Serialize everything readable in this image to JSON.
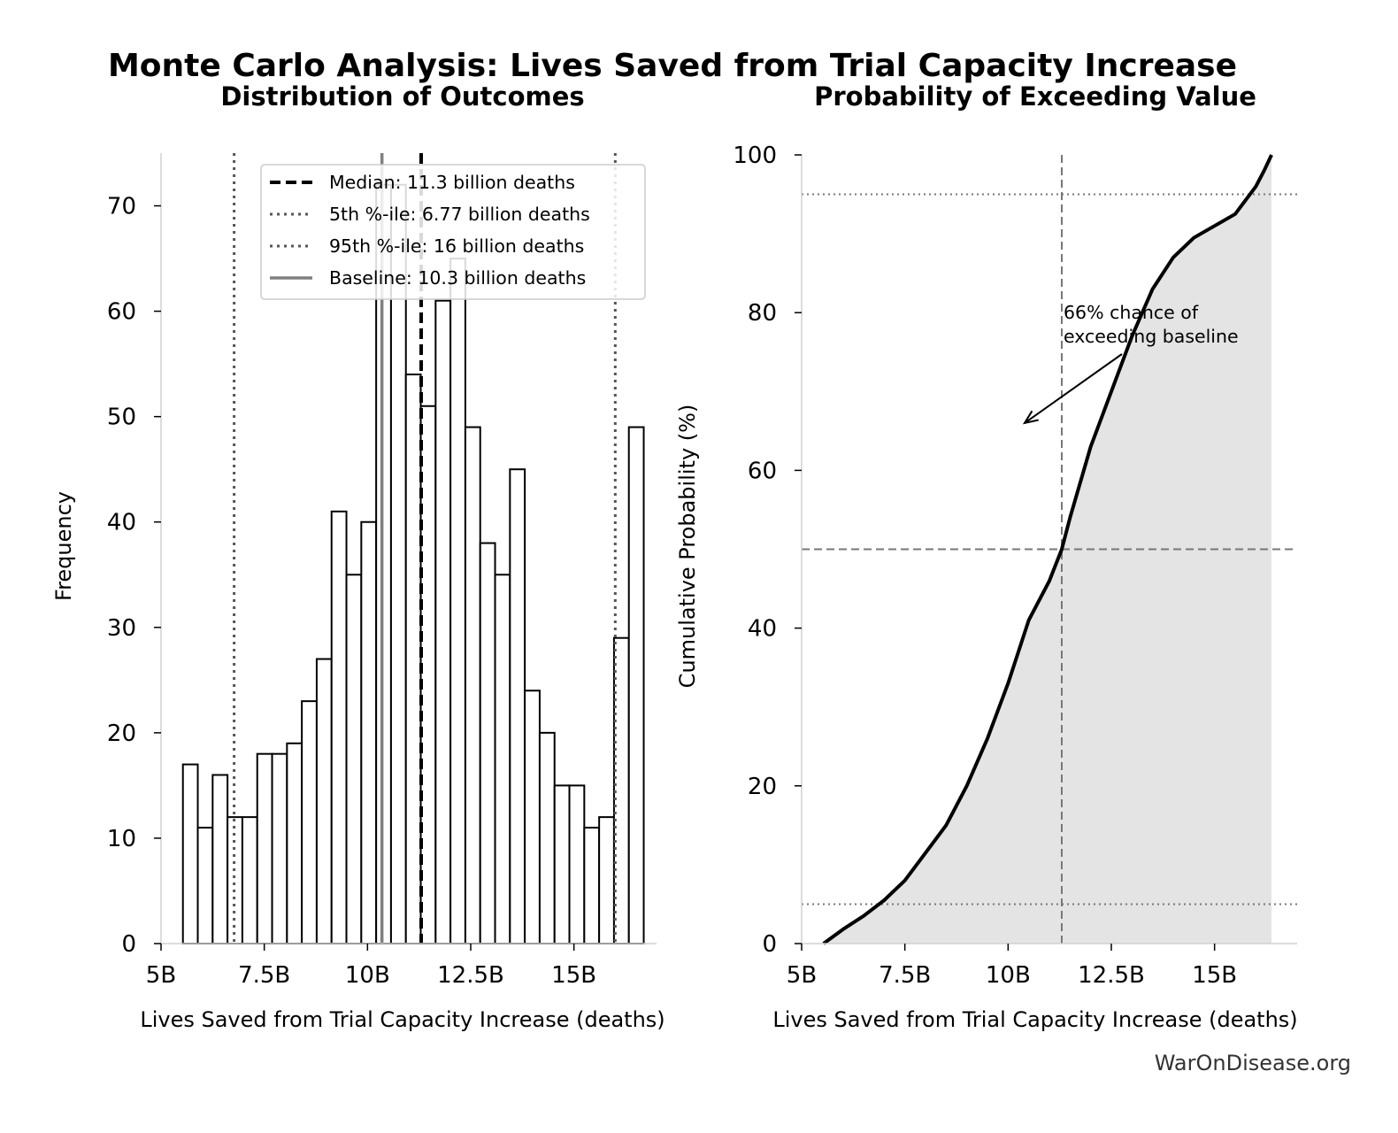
{
  "title": "Monte Carlo Analysis: Lives Saved from Trial Capacity Increase",
  "footer": "WarOnDisease.org",
  "chart_data": [
    {
      "type": "bar",
      "subtitle": "Distribution of Outcomes",
      "xlabel": "Lives Saved from Trial Capacity Increase (deaths)",
      "ylabel": "Frequency",
      "xlim": [
        5000000000,
        17000000000
      ],
      "ylim": [
        0,
        75
      ],
      "xticks": [
        5000000000,
        7500000000,
        10000000000,
        12500000000,
        15000000000
      ],
      "xtick_labels": [
        "5B",
        "7.5B",
        "10B",
        "12.5B",
        "15B"
      ],
      "yticks": [
        0,
        10,
        20,
        30,
        40,
        50,
        60,
        70
      ],
      "bin_start": 5530000000,
      "bin_width": 360000000,
      "values": [
        17,
        11,
        16,
        12,
        12,
        18,
        18,
        19,
        23,
        27,
        41,
        35,
        40,
        72,
        72,
        54,
        51,
        61,
        65,
        49,
        38,
        35,
        45,
        24,
        20,
        15,
        15,
        11,
        12,
        29,
        49
      ],
      "reference_lines": [
        {
          "label": "Median: 11.3 billion deaths",
          "x": 11300000000,
          "style": "dashed",
          "color": "#000000"
        },
        {
          "label": "5th %-ile: 6.77 billion deaths",
          "x": 6770000000,
          "style": "dotted",
          "color": "#555555"
        },
        {
          "label": "95th %-ile: 16 billion deaths",
          "x": 16000000000,
          "style": "dotted",
          "color": "#555555"
        },
        {
          "label": "Baseline: 10.3 billion deaths",
          "x": 10350000000,
          "style": "solid",
          "color": "#808080"
        }
      ],
      "legend_position": "upper right",
      "grid": false
    },
    {
      "type": "area",
      "subtitle": "Probability of Exceeding Value",
      "xlabel": "Lives Saved from Trial Capacity Increase (deaths)",
      "ylabel": "Cumulative Probability (%)",
      "xlim": [
        5000000000,
        17000000000
      ],
      "ylim": [
        0,
        100
      ],
      "xticks": [
        5000000000,
        7500000000,
        10000000000,
        12500000000,
        15000000000
      ],
      "xtick_labels": [
        "5B",
        "7.5B",
        "10B",
        "12.5B",
        "15B"
      ],
      "yticks": [
        0,
        20,
        40,
        60,
        80,
        100
      ],
      "x": [
        5530000000,
        6000000000,
        6500000000,
        7000000000,
        7500000000,
        8000000000,
        8500000000,
        9000000000,
        9500000000,
        10000000000,
        10500000000,
        11000000000,
        11300000000,
        11500000000,
        12000000000,
        12500000000,
        13000000000,
        13500000000,
        14000000000,
        14500000000,
        15000000000,
        15500000000,
        16000000000,
        16200000000,
        16380000000
      ],
      "y": [
        0,
        1.8,
        3.5,
        5.5,
        8,
        11.5,
        15,
        20,
        26,
        33,
        41,
        46,
        50,
        54,
        63,
        70,
        77,
        83,
        87,
        89.5,
        91,
        92.5,
        96,
        98,
        100
      ],
      "reference_lines": [
        {
          "orientation": "vertical",
          "x": 11300000000,
          "style": "dashed"
        },
        {
          "orientation": "horizontal",
          "y": 50,
          "style": "dashed"
        },
        {
          "orientation": "horizontal",
          "y": 95,
          "style": "dotted"
        },
        {
          "orientation": "horizontal",
          "y": 5,
          "style": "dotted"
        }
      ],
      "annotation": {
        "text_lines": [
          "66% chance of",
          "exceeding baseline"
        ],
        "arrow_to": [
          10400000000,
          66
        ]
      },
      "grid": false
    }
  ]
}
